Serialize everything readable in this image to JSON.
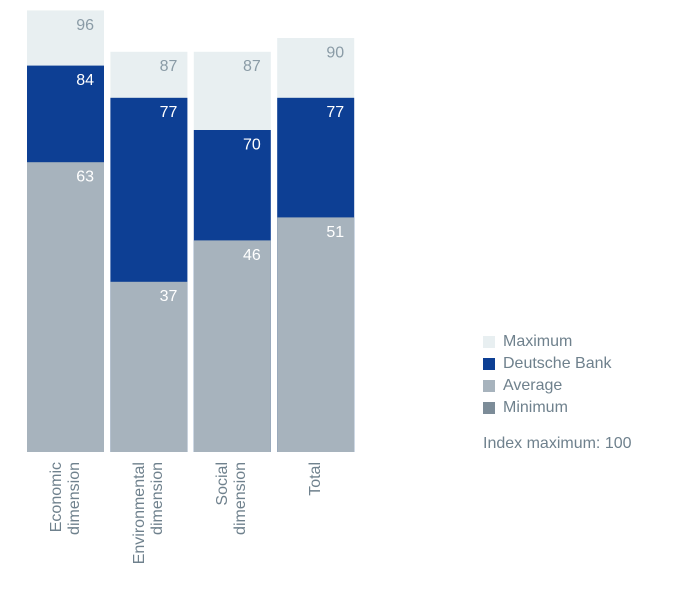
{
  "chart_data": {
    "type": "bar",
    "categories": [
      "Economic\ndimension",
      "Environmental\ndimension",
      "Social\ndimension",
      "Total"
    ],
    "series": [
      {
        "name": "Maximum",
        "color": "#e8eff1",
        "label_color": "#8a9ba6",
        "values": [
          96,
          87,
          87,
          90
        ]
      },
      {
        "name": "Deutsche Bank",
        "color": "#0d3f94",
        "label_color": "#ffffff",
        "values": [
          84,
          77,
          70,
          77
        ]
      },
      {
        "name": "Average",
        "color": "#a7b3bd",
        "label_color": "#ffffff",
        "values": [
          63,
          37,
          46,
          51
        ]
      },
      {
        "name": "Minimum",
        "color": "#7c8c98",
        "label_color": "#ffffff",
        "values": [
          null,
          null,
          null,
          null
        ]
      }
    ],
    "ylim": [
      0,
      100
    ],
    "note": "Index maximum: 100"
  }
}
